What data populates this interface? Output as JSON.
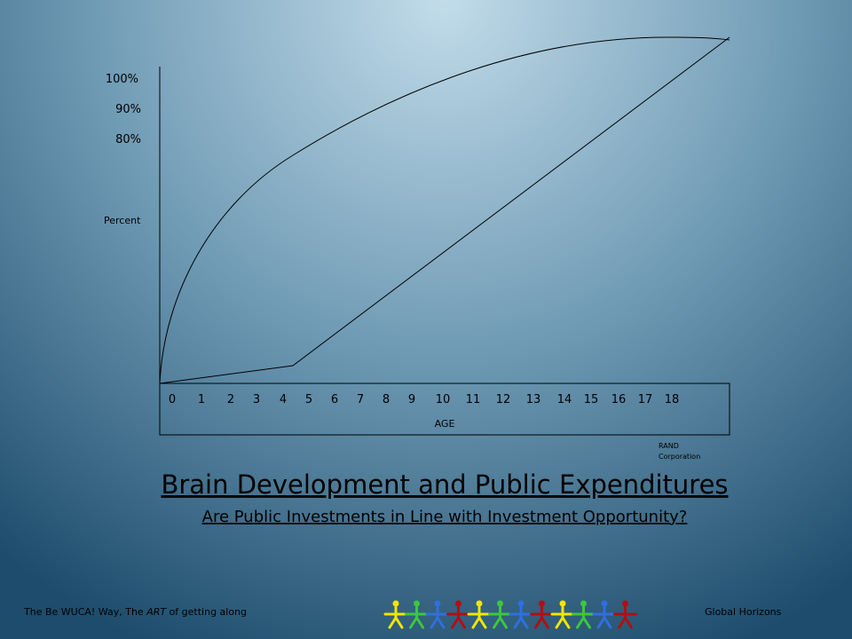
{
  "chart": {
    "y_labels": [
      "100%",
      "90%",
      "80%"
    ],
    "y_axis_label": "Percent",
    "x_labels": [
      "0",
      "1",
      "2",
      "3",
      "4",
      "5",
      "6",
      "7",
      "8",
      "9",
      "10",
      "11",
      "12",
      "13",
      "14",
      "15",
      "16",
      "17",
      "18"
    ],
    "x_axis_label": "AGE",
    "source": [
      "RAND",
      "Corporation"
    ]
  },
  "title": "Brain Development and Public Expenditures",
  "subtitle": "Are Public Investments in Line with Investment Opportunity?",
  "footer": {
    "left": {
      "before": "The Be WUCA! Way, The ",
      "emphasis": "ART",
      "after": " of getting along"
    },
    "right": "Global Horizons"
  }
}
